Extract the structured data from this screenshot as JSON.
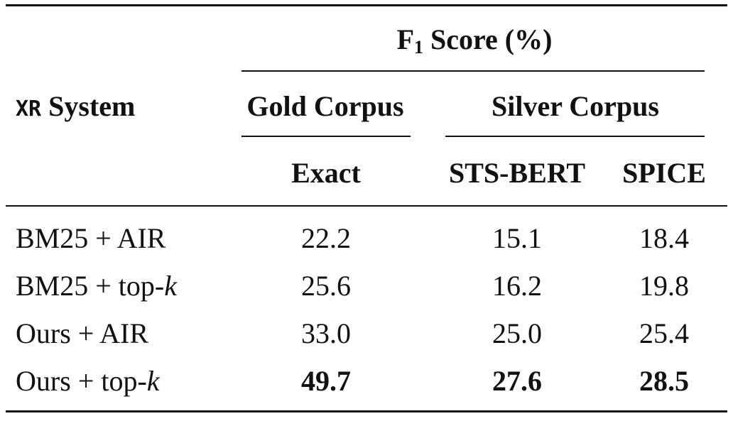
{
  "header": {
    "group_title": "F",
    "group_title_sub": "1",
    "group_title_rest": " Score (%)",
    "system_prefix": "XR",
    "system_label": " System",
    "gold": "Gold Corpus",
    "silver": "Silver Corpus",
    "cols": [
      "Exact",
      "STS-BERT",
      "SPICE"
    ]
  },
  "rows": [
    {
      "system": "BM25 + AIR",
      "system_italic": "",
      "values": [
        "22.2",
        "15.1",
        "18.4"
      ],
      "bold": false
    },
    {
      "system": "BM25 + top-",
      "system_italic": "k",
      "values": [
        "25.6",
        "16.2",
        "19.8"
      ],
      "bold": false
    },
    {
      "system": "Ours + AIR",
      "system_italic": "",
      "values": [
        "33.0",
        "25.0",
        "25.4"
      ],
      "bold": false
    },
    {
      "system": "Ours + top-",
      "system_italic": "k",
      "values": [
        "49.7",
        "27.6",
        "28.5"
      ],
      "bold": true
    }
  ]
}
